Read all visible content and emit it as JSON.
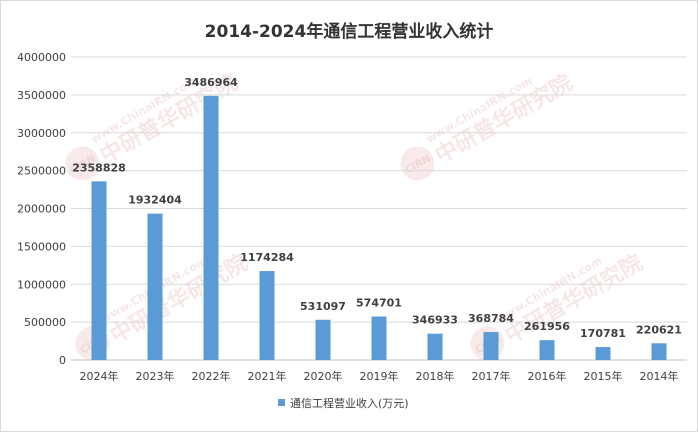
{
  "chart_data": {
    "type": "bar",
    "title": "2014-2024年通信工程营业收入统计",
    "categories": [
      "2024年",
      "2023年",
      "2022年",
      "2021年",
      "2020年",
      "2019年",
      "2018年",
      "2017年",
      "2016年",
      "2015年",
      "2014年"
    ],
    "series": [
      {
        "name": "通信工程营业收入(万元)",
        "values": [
          2358828,
          1932404,
          3486964,
          1174284,
          531097,
          574701,
          346933,
          368784,
          261956,
          170781,
          220621
        ],
        "color": "#5b9bd5"
      }
    ],
    "ylim": [
      0,
      4000000
    ],
    "yticks": [
      0,
      500000,
      1000000,
      1500000,
      2000000,
      2500000,
      3000000,
      3500000,
      4000000
    ],
    "grid": true,
    "legend_position": "bottom-center",
    "data_labels": true
  },
  "watermark": {
    "text": "www.ChinaIRN.com",
    "cn": "中研普华研究院",
    "logo": "CIRN"
  }
}
